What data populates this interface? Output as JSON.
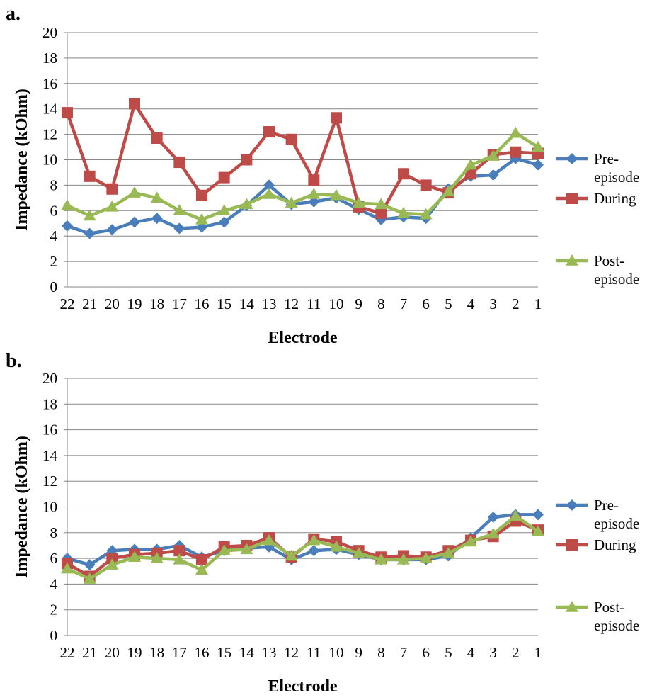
{
  "chart_data": [
    {
      "panel_label": "a.",
      "type": "line",
      "categories": [
        "22",
        "21",
        "20",
        "19",
        "18",
        "17",
        "16",
        "15",
        "14",
        "13",
        "12",
        "11",
        "10",
        "9",
        "8",
        "7",
        "6",
        "5",
        "4",
        "3",
        "2",
        "1"
      ],
      "xlabel": "Electrode",
      "ylabel": "Impedance (kOhm)",
      "ylim": [
        0,
        20
      ],
      "yticks": [
        "0",
        "2",
        "4",
        "6",
        "8",
        "10",
        "12",
        "14",
        "16",
        "18",
        "20"
      ],
      "grid": "horizontal",
      "legend_placement": "right",
      "series": [
        {
          "name": "Pre-episode",
          "legend_lines": [
            "Pre-",
            "episode"
          ],
          "color": "#4a7ebb",
          "marker": "diamond",
          "values": [
            4.8,
            4.2,
            4.5,
            5.1,
            5.4,
            4.6,
            4.7,
            5.1,
            6.4,
            8.0,
            6.5,
            6.7,
            7.0,
            6.1,
            5.3,
            5.5,
            5.4,
            7.7,
            8.7,
            8.8,
            10.1,
            9.6
          ]
        },
        {
          "name": "During",
          "legend_lines": [
            "During"
          ],
          "color": "#be4b48",
          "marker": "square",
          "values": [
            13.7,
            8.7,
            7.7,
            14.4,
            11.7,
            9.8,
            7.2,
            8.6,
            10.0,
            12.2,
            11.6,
            8.4,
            13.3,
            6.3,
            5.8,
            8.9,
            8.0,
            7.4,
            8.9,
            10.4,
            10.6,
            10.5
          ]
        },
        {
          "name": "Post-episode",
          "legend_lines": [
            "Post-",
            "episode"
          ],
          "color": "#98b954",
          "marker": "triangle",
          "values": [
            6.4,
            5.6,
            6.3,
            7.4,
            7.0,
            6.0,
            5.3,
            6.0,
            6.5,
            7.3,
            6.6,
            7.3,
            7.2,
            6.6,
            6.5,
            5.8,
            5.7,
            7.5,
            9.6,
            10.3,
            12.1,
            11.0
          ]
        }
      ]
    },
    {
      "panel_label": "b.",
      "type": "line",
      "categories": [
        "22",
        "21",
        "20",
        "19",
        "18",
        "17",
        "16",
        "15",
        "14",
        "13",
        "12",
        "11",
        "10",
        "9",
        "8",
        "7",
        "6",
        "5",
        "4",
        "3",
        "2",
        "1"
      ],
      "xlabel": "Electrode",
      "ylabel": "Impedance (kOhm)",
      "ylim": [
        0,
        20
      ],
      "yticks": [
        "0",
        "2",
        "4",
        "6",
        "8",
        "10",
        "12",
        "14",
        "16",
        "18",
        "20"
      ],
      "grid": "horizontal",
      "legend_placement": "right",
      "series": [
        {
          "name": "Pre-episode",
          "legend_lines": [
            "Pre-",
            "episode"
          ],
          "color": "#4a7ebb",
          "marker": "diamond",
          "values": [
            6.0,
            5.5,
            6.6,
            6.7,
            6.7,
            7.0,
            6.1,
            6.6,
            6.8,
            6.9,
            5.9,
            6.6,
            6.7,
            6.3,
            5.9,
            5.9,
            5.9,
            6.2,
            7.6,
            9.2,
            9.4,
            9.4
          ]
        },
        {
          "name": "During",
          "legend_lines": [
            "During"
          ],
          "color": "#be4b48",
          "marker": "square",
          "values": [
            5.6,
            4.6,
            6.0,
            6.3,
            6.4,
            6.6,
            5.9,
            6.9,
            7.0,
            7.6,
            6.1,
            7.5,
            7.3,
            6.6,
            6.1,
            6.2,
            6.1,
            6.6,
            7.4,
            7.7,
            8.9,
            8.2
          ]
        },
        {
          "name": "Post-episode",
          "legend_lines": [
            "Post-",
            "episode"
          ],
          "color": "#98b954",
          "marker": "triangle",
          "values": [
            5.2,
            4.4,
            5.5,
            6.1,
            6.0,
            5.9,
            5.1,
            6.6,
            6.7,
            7.4,
            6.2,
            7.4,
            6.9,
            6.4,
            5.9,
            5.9,
            6.0,
            6.4,
            7.3,
            7.9,
            9.3,
            8.1
          ]
        }
      ]
    }
  ]
}
